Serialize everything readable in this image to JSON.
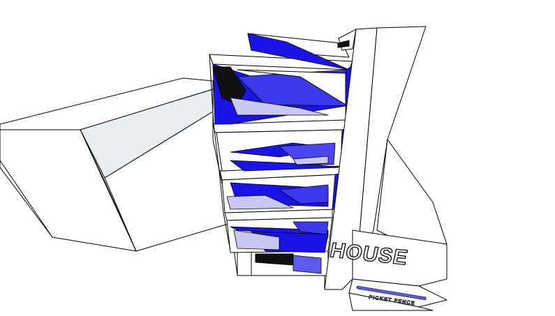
{
  "labels": {
    "house_sign": "HOUSE",
    "fence_sign": "PICKET FENCE"
  },
  "colors": {
    "glass": "#1a14e8",
    "glass_light": "#4a46f0",
    "glass_pale": "#c9c8f2",
    "shade": "#dfe7ef",
    "line": "#000000",
    "background": "#ffffff"
  }
}
